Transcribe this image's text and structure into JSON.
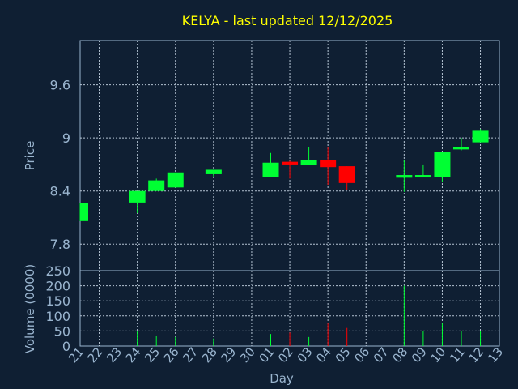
{
  "chart_data": {
    "type": "candlestick",
    "title": "KELYA - last updated 12/12/2025",
    "xlabel": "Day",
    "price_panel": {
      "ylabel": "Price",
      "yticks": [
        "7.8",
        "8.4",
        "9",
        "9.6"
      ],
      "ylim": [
        7.5,
        10.1
      ],
      "grid": true
    },
    "volume_panel": {
      "ylabel": "Volume (0000)",
      "yticks": [
        "0",
        "50",
        "100",
        "150",
        "200",
        "250"
      ],
      "ylim": [
        0,
        250
      ],
      "grid": true
    },
    "x_labels": [
      "21",
      "22",
      "23",
      "24",
      "25",
      "26",
      "27",
      "28",
      "29",
      "30",
      "01",
      "02",
      "03",
      "04",
      "05",
      "06",
      "07",
      "08",
      "09",
      "10",
      "11",
      "12",
      "13"
    ],
    "up_color": "#00ff33",
    "down_color": "#ff0000",
    "candles": [
      {
        "x": 0,
        "open": 8.06,
        "close": 8.26,
        "high": 8.26,
        "low": 8.06,
        "volume": 0
      },
      {
        "x": 3,
        "open": 8.27,
        "close": 8.4,
        "high": 8.4,
        "low": 8.15,
        "volume": 50
      },
      {
        "x": 4,
        "open": 8.4,
        "close": 8.52,
        "high": 8.54,
        "low": 8.4,
        "volume": 35
      },
      {
        "x": 5,
        "open": 8.44,
        "close": 8.61,
        "high": 8.61,
        "low": 8.44,
        "volume": 30
      },
      {
        "x": 7,
        "open": 8.59,
        "close": 8.64,
        "high": 8.64,
        "low": 8.56,
        "volume": 25
      },
      {
        "x": 10,
        "open": 8.56,
        "close": 8.72,
        "high": 8.83,
        "low": 8.56,
        "volume": 40
      },
      {
        "x": 11,
        "open": 8.73,
        "close": 8.7,
        "high": 8.74,
        "low": 8.54,
        "volume": 45
      },
      {
        "x": 12,
        "open": 8.69,
        "close": 8.75,
        "high": 8.9,
        "low": 8.69,
        "volume": 30
      },
      {
        "x": 13,
        "open": 8.75,
        "close": 8.67,
        "high": 8.9,
        "low": 8.47,
        "volume": 75
      },
      {
        "x": 14,
        "open": 8.68,
        "close": 8.49,
        "high": 8.68,
        "low": 8.41,
        "volume": 60
      },
      {
        "x": 17,
        "open": 8.55,
        "close": 8.58,
        "high": 8.75,
        "low": 8.39,
        "volume": 200
      },
      {
        "x": 18,
        "open": 8.57,
        "close": 8.58,
        "high": 8.7,
        "low": 8.56,
        "volume": 50
      },
      {
        "x": 19,
        "open": 8.56,
        "close": 8.84,
        "high": 8.84,
        "low": 8.5,
        "volume": 75
      },
      {
        "x": 20,
        "open": 8.87,
        "close": 8.9,
        "high": 9.0,
        "low": 8.86,
        "volume": 50
      },
      {
        "x": 21,
        "open": 8.95,
        "close": 9.08,
        "high": 9.1,
        "low": 8.95,
        "volume": 50
      }
    ]
  }
}
